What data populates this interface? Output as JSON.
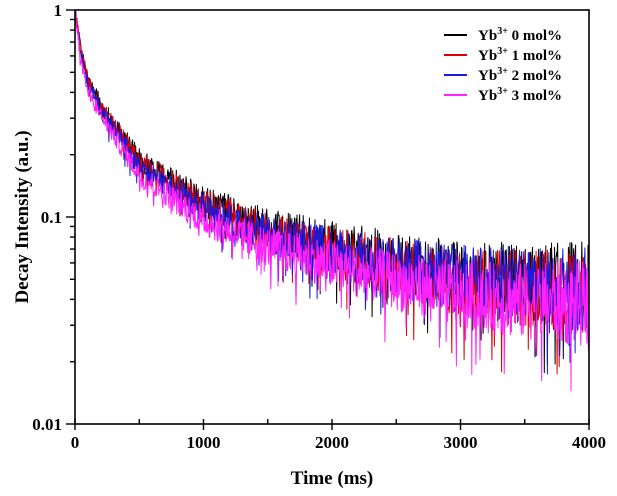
{
  "chart_data": {
    "type": "line",
    "title": "",
    "xlabel": "Time (ms)",
    "ylabel": "Decay Intensity (a.u.)",
    "xlim": [
      0,
      4000
    ],
    "ylim": [
      0.01,
      1
    ],
    "yscale": "log",
    "grid": false,
    "legend_position": "top-right",
    "x_ticks": [
      0,
      1000,
      2000,
      3000,
      4000
    ],
    "x_tick_labels": [
      "0",
      "1000",
      "2000",
      "3000",
      "4000"
    ],
    "y_ticks": [
      0.01,
      0.1,
      1
    ],
    "y_tick_labels": [
      "0.01",
      "0.1",
      "1"
    ],
    "x": [
      0,
      50,
      100,
      200,
      500,
      1000,
      1500,
      2000,
      2500,
      3000,
      3500,
      4000
    ],
    "series": [
      {
        "name": "Yb3+ 0 mol%",
        "label_base": "Yb",
        "label_sup": "3+",
        "label_rest": " 0 mol%",
        "color": "#000000",
        "values": [
          1.0,
          0.62,
          0.47,
          0.35,
          0.19,
          0.12,
          0.088,
          0.073,
          0.061,
          0.052,
          0.049,
          0.047
        ]
      },
      {
        "name": "Yb3+ 1 mol%",
        "label_base": "Yb",
        "label_sup": "3+",
        "label_rest": " 1 mol%",
        "color": "#dd0000",
        "values": [
          1.0,
          0.61,
          0.46,
          0.34,
          0.185,
          0.115,
          0.084,
          0.068,
          0.057,
          0.048,
          0.045,
          0.043
        ]
      },
      {
        "name": "Yb3+ 2 mol%",
        "label_base": "Yb",
        "label_sup": "3+",
        "label_rest": " 2 mol%",
        "color": "#1a1adf",
        "values": [
          1.0,
          0.59,
          0.44,
          0.33,
          0.175,
          0.11,
          0.082,
          0.068,
          0.058,
          0.05,
          0.047,
          0.045
        ]
      },
      {
        "name": "Yb3+ 3 mol%",
        "label_base": "Yb",
        "label_sup": "3+",
        "label_rest": " 3 mol%",
        "color": "#ff22ff",
        "values": [
          1.0,
          0.56,
          0.41,
          0.31,
          0.16,
          0.097,
          0.072,
          0.059,
          0.049,
          0.042,
          0.039,
          0.038
        ]
      }
    ]
  }
}
